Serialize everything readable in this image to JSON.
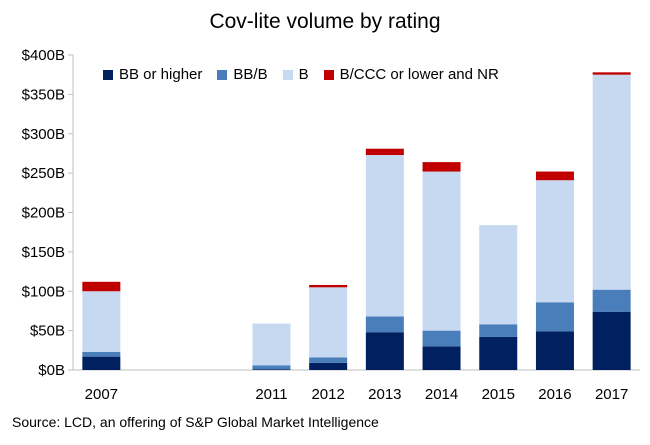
{
  "chart_data": {
    "type": "bar",
    "stacked": true,
    "title": "Cov-lite volume by rating",
    "source": "Source: LCD, an offering of S&P Global Market Intelligence",
    "categories": [
      "2007",
      "",
      "",
      "2011",
      "2012",
      "2013",
      "2014",
      "2015",
      "2016",
      "2017"
    ],
    "series": [
      {
        "name": "BB or higher",
        "color": "#002060",
        "values": [
          17,
          0,
          0,
          1,
          9,
          48,
          30,
          42,
          49,
          74
        ]
      },
      {
        "name": "BB/B",
        "color": "#4a7ebb",
        "values": [
          6,
          0,
          0,
          5,
          7,
          20,
          20,
          16,
          37,
          28
        ]
      },
      {
        "name": "B",
        "color": "#c6d9f1",
        "values": [
          77,
          0,
          0,
          53,
          89,
          205,
          202,
          126,
          155,
          273
        ]
      },
      {
        "name": "B/CCC or lower and NR",
        "color": "#c00000",
        "values": [
          12,
          0,
          0,
          0,
          3,
          8,
          12,
          0,
          11,
          3
        ]
      }
    ],
    "ylim": [
      0,
      400
    ],
    "yticks": [
      "$0B",
      "$50B",
      "$100B",
      "$150B",
      "$200B",
      "$250B",
      "$300B",
      "$350B",
      "$400B"
    ],
    "legend_position": "top"
  }
}
